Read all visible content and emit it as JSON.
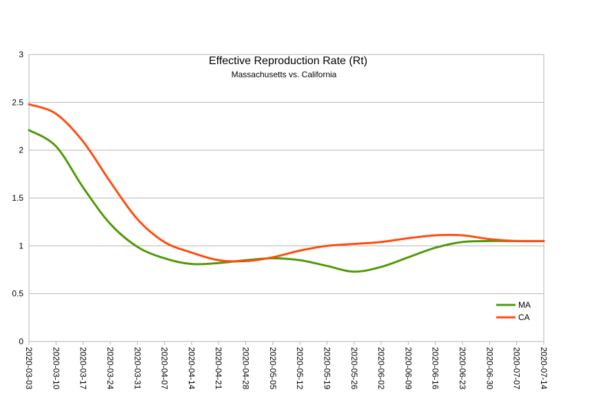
{
  "chart_data": {
    "type": "line",
    "title": "Effective Reproduction Rate (Rt)",
    "subtitle": "Massachusetts vs. California",
    "xlabel": "",
    "ylabel": "",
    "ylim": [
      0,
      3
    ],
    "yticks": [
      "0",
      "0.5",
      "1",
      "1.5",
      "2",
      "2.5",
      "3"
    ],
    "grid": true,
    "legend_position": "right",
    "categories": [
      "2020-03-03",
      "2020-03-10",
      "2020-03-17",
      "2020-03-24",
      "2020-03-31",
      "2020-04-07",
      "2020-04-14",
      "2020-04-21",
      "2020-04-28",
      "2020-05-05",
      "2020-05-12",
      "2020-05-19",
      "2020-05-26",
      "2020-06-02",
      "2020-06-09",
      "2020-06-16",
      "2020-06-23",
      "2020-06-30",
      "2020-07-07",
      "2020-07-14"
    ],
    "series": [
      {
        "name": "MA",
        "color": "#4e9a06",
        "values": [
          2.21,
          2.04,
          1.61,
          1.23,
          0.99,
          0.87,
          0.81,
          0.82,
          0.85,
          0.87,
          0.85,
          0.79,
          0.73,
          0.78,
          0.88,
          0.98,
          1.04,
          1.05,
          1.05,
          1.05
        ]
      },
      {
        "name": "CA",
        "color": "#ff4c0c",
        "values": [
          2.48,
          2.38,
          2.09,
          1.67,
          1.28,
          1.04,
          0.93,
          0.85,
          0.84,
          0.88,
          0.95,
          1.0,
          1.02,
          1.04,
          1.08,
          1.11,
          1.11,
          1.07,
          1.05,
          1.05
        ]
      }
    ]
  }
}
